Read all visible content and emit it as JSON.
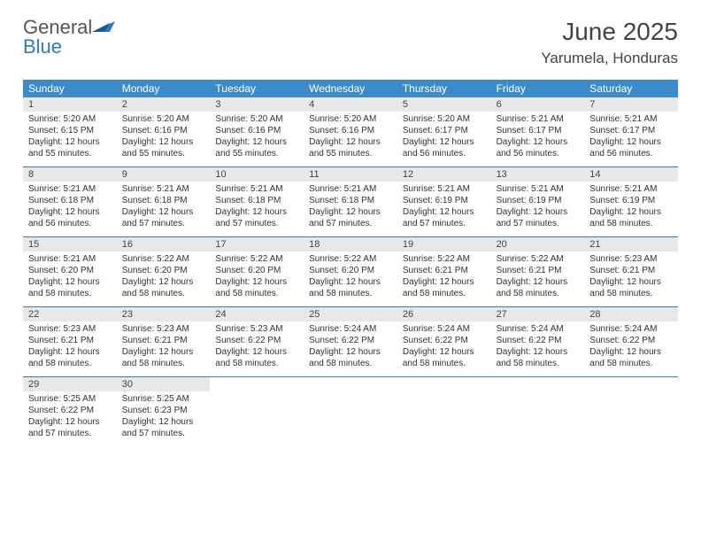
{
  "logo": {
    "text_gray": "General",
    "text_blue": "Blue"
  },
  "header": {
    "month_title": "June 2025",
    "location": "Yarumela, Honduras"
  },
  "colors": {
    "header_bg": "#3b8bc9",
    "header_text": "#ffffff",
    "daynum_bg": "#e8e8e8",
    "week_border": "#3b7aad",
    "logo_blue": "#2f7bbf",
    "logo_gray": "#555555",
    "body_text": "#333333"
  },
  "dow": [
    "Sunday",
    "Monday",
    "Tuesday",
    "Wednesday",
    "Thursday",
    "Friday",
    "Saturday"
  ],
  "days": [
    {
      "n": 1,
      "sr": "5:20 AM",
      "ss": "6:15 PM",
      "dl": "12 hours and 55 minutes."
    },
    {
      "n": 2,
      "sr": "5:20 AM",
      "ss": "6:16 PM",
      "dl": "12 hours and 55 minutes."
    },
    {
      "n": 3,
      "sr": "5:20 AM",
      "ss": "6:16 PM",
      "dl": "12 hours and 55 minutes."
    },
    {
      "n": 4,
      "sr": "5:20 AM",
      "ss": "6:16 PM",
      "dl": "12 hours and 55 minutes."
    },
    {
      "n": 5,
      "sr": "5:20 AM",
      "ss": "6:17 PM",
      "dl": "12 hours and 56 minutes."
    },
    {
      "n": 6,
      "sr": "5:21 AM",
      "ss": "6:17 PM",
      "dl": "12 hours and 56 minutes."
    },
    {
      "n": 7,
      "sr": "5:21 AM",
      "ss": "6:17 PM",
      "dl": "12 hours and 56 minutes."
    },
    {
      "n": 8,
      "sr": "5:21 AM",
      "ss": "6:18 PM",
      "dl": "12 hours and 56 minutes."
    },
    {
      "n": 9,
      "sr": "5:21 AM",
      "ss": "6:18 PM",
      "dl": "12 hours and 57 minutes."
    },
    {
      "n": 10,
      "sr": "5:21 AM",
      "ss": "6:18 PM",
      "dl": "12 hours and 57 minutes."
    },
    {
      "n": 11,
      "sr": "5:21 AM",
      "ss": "6:18 PM",
      "dl": "12 hours and 57 minutes."
    },
    {
      "n": 12,
      "sr": "5:21 AM",
      "ss": "6:19 PM",
      "dl": "12 hours and 57 minutes."
    },
    {
      "n": 13,
      "sr": "5:21 AM",
      "ss": "6:19 PM",
      "dl": "12 hours and 57 minutes."
    },
    {
      "n": 14,
      "sr": "5:21 AM",
      "ss": "6:19 PM",
      "dl": "12 hours and 58 minutes."
    },
    {
      "n": 15,
      "sr": "5:21 AM",
      "ss": "6:20 PM",
      "dl": "12 hours and 58 minutes."
    },
    {
      "n": 16,
      "sr": "5:22 AM",
      "ss": "6:20 PM",
      "dl": "12 hours and 58 minutes."
    },
    {
      "n": 17,
      "sr": "5:22 AM",
      "ss": "6:20 PM",
      "dl": "12 hours and 58 minutes."
    },
    {
      "n": 18,
      "sr": "5:22 AM",
      "ss": "6:20 PM",
      "dl": "12 hours and 58 minutes."
    },
    {
      "n": 19,
      "sr": "5:22 AM",
      "ss": "6:21 PM",
      "dl": "12 hours and 58 minutes."
    },
    {
      "n": 20,
      "sr": "5:22 AM",
      "ss": "6:21 PM",
      "dl": "12 hours and 58 minutes."
    },
    {
      "n": 21,
      "sr": "5:23 AM",
      "ss": "6:21 PM",
      "dl": "12 hours and 58 minutes."
    },
    {
      "n": 22,
      "sr": "5:23 AM",
      "ss": "6:21 PM",
      "dl": "12 hours and 58 minutes."
    },
    {
      "n": 23,
      "sr": "5:23 AM",
      "ss": "6:21 PM",
      "dl": "12 hours and 58 minutes."
    },
    {
      "n": 24,
      "sr": "5:23 AM",
      "ss": "6:22 PM",
      "dl": "12 hours and 58 minutes."
    },
    {
      "n": 25,
      "sr": "5:24 AM",
      "ss": "6:22 PM",
      "dl": "12 hours and 58 minutes."
    },
    {
      "n": 26,
      "sr": "5:24 AM",
      "ss": "6:22 PM",
      "dl": "12 hours and 58 minutes."
    },
    {
      "n": 27,
      "sr": "5:24 AM",
      "ss": "6:22 PM",
      "dl": "12 hours and 58 minutes."
    },
    {
      "n": 28,
      "sr": "5:24 AM",
      "ss": "6:22 PM",
      "dl": "12 hours and 58 minutes."
    },
    {
      "n": 29,
      "sr": "5:25 AM",
      "ss": "6:22 PM",
      "dl": "12 hours and 57 minutes."
    },
    {
      "n": 30,
      "sr": "5:25 AM",
      "ss": "6:23 PM",
      "dl": "12 hours and 57 minutes."
    }
  ],
  "labels": {
    "sunrise": "Sunrise:",
    "sunset": "Sunset:",
    "daylight": "Daylight:"
  }
}
